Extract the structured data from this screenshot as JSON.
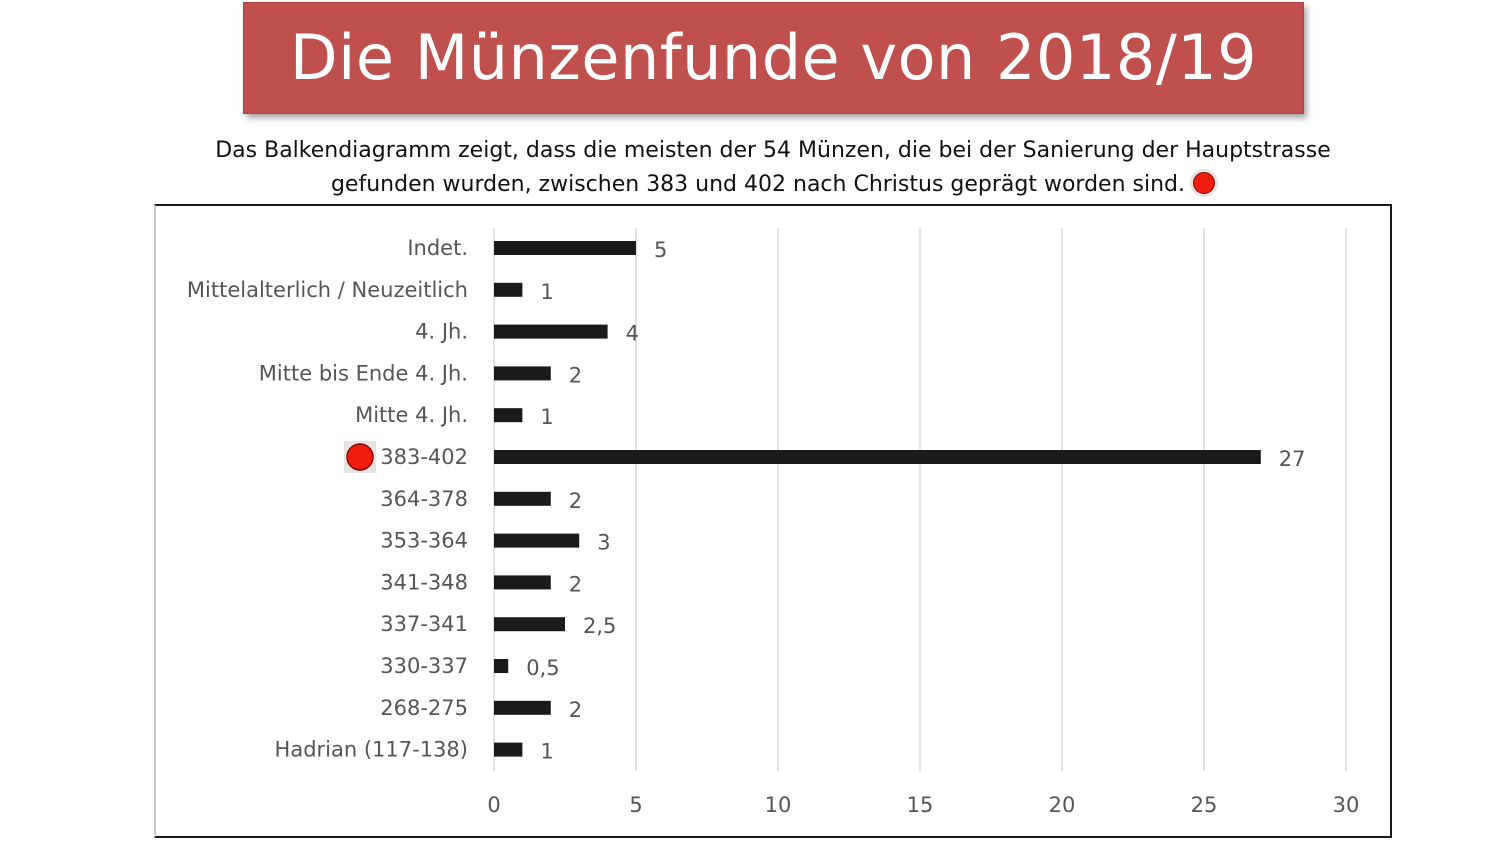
{
  "header": {
    "title": "Die Münzenfunde von 2018/19",
    "subtitle_line_1": "Das Balkendiagramm zeigt, dass die meisten der 54 Münzen, die bei der Sanierung der Hauptstrasse",
    "subtitle_line_2": "gefunden wurden, zwischen 383 und 402 nach Christus geprägt worden sind."
  },
  "colors": {
    "banner": "#c0504d",
    "bar": "#1a1a1a",
    "marker": "#f21b0f",
    "gridline": "#d9d9d9",
    "label_text": "#555555"
  },
  "icons": {
    "marker": "red-dot-icon"
  },
  "chart_data": {
    "type": "bar",
    "orientation": "horizontal",
    "categories": [
      "Indet.",
      "Mittelalterlich / Neuzeitlich",
      "4. Jh.",
      "Mitte bis Ende 4. Jh.",
      "Mitte 4. Jh.",
      "383-402",
      "364-378",
      "353-364",
      "341-348",
      "337-341",
      "330-337",
      "268-275",
      "Hadrian (117-138)"
    ],
    "values": [
      5,
      1,
      4,
      2,
      1,
      27,
      2,
      3,
      2,
      2.5,
      0.5,
      2,
      1
    ],
    "value_labels": [
      "5",
      "1",
      "4",
      "2",
      "1",
      "27",
      "2",
      "3",
      "2",
      "2,5",
      "0,5",
      "2",
      "1"
    ],
    "highlighted_category": "383-402",
    "x_ticks": [
      "0",
      "5",
      "10",
      "15",
      "20",
      "25",
      "30"
    ],
    "xlim": [
      0,
      30
    ],
    "grid": "vertical",
    "legend": "none"
  }
}
